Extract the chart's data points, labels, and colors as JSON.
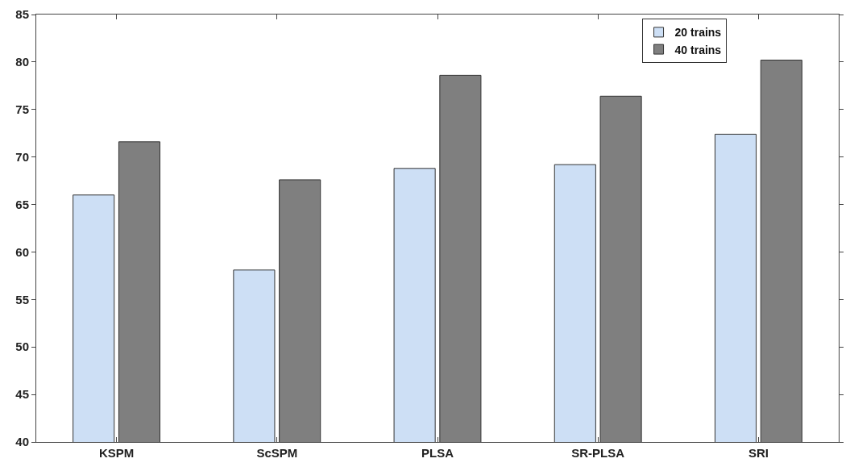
{
  "chart_data": {
    "type": "bar",
    "categories": [
      "KSPM",
      "ScSPM",
      "PLSA",
      "SR-PLSA",
      "SRI"
    ],
    "series": [
      {
        "name": "20 trains",
        "color": "#cddff5",
        "values": [
          66.0,
          58.1,
          68.8,
          69.2,
          72.4
        ]
      },
      {
        "name": "40 trains",
        "color": "#7f7f7f",
        "values": [
          71.6,
          67.6,
          78.6,
          76.4,
          80.2
        ]
      }
    ],
    "ylim": [
      40,
      85
    ],
    "yticks": [
      40,
      45,
      50,
      55,
      60,
      65,
      70,
      75,
      80,
      85
    ],
    "legend": "top right"
  }
}
